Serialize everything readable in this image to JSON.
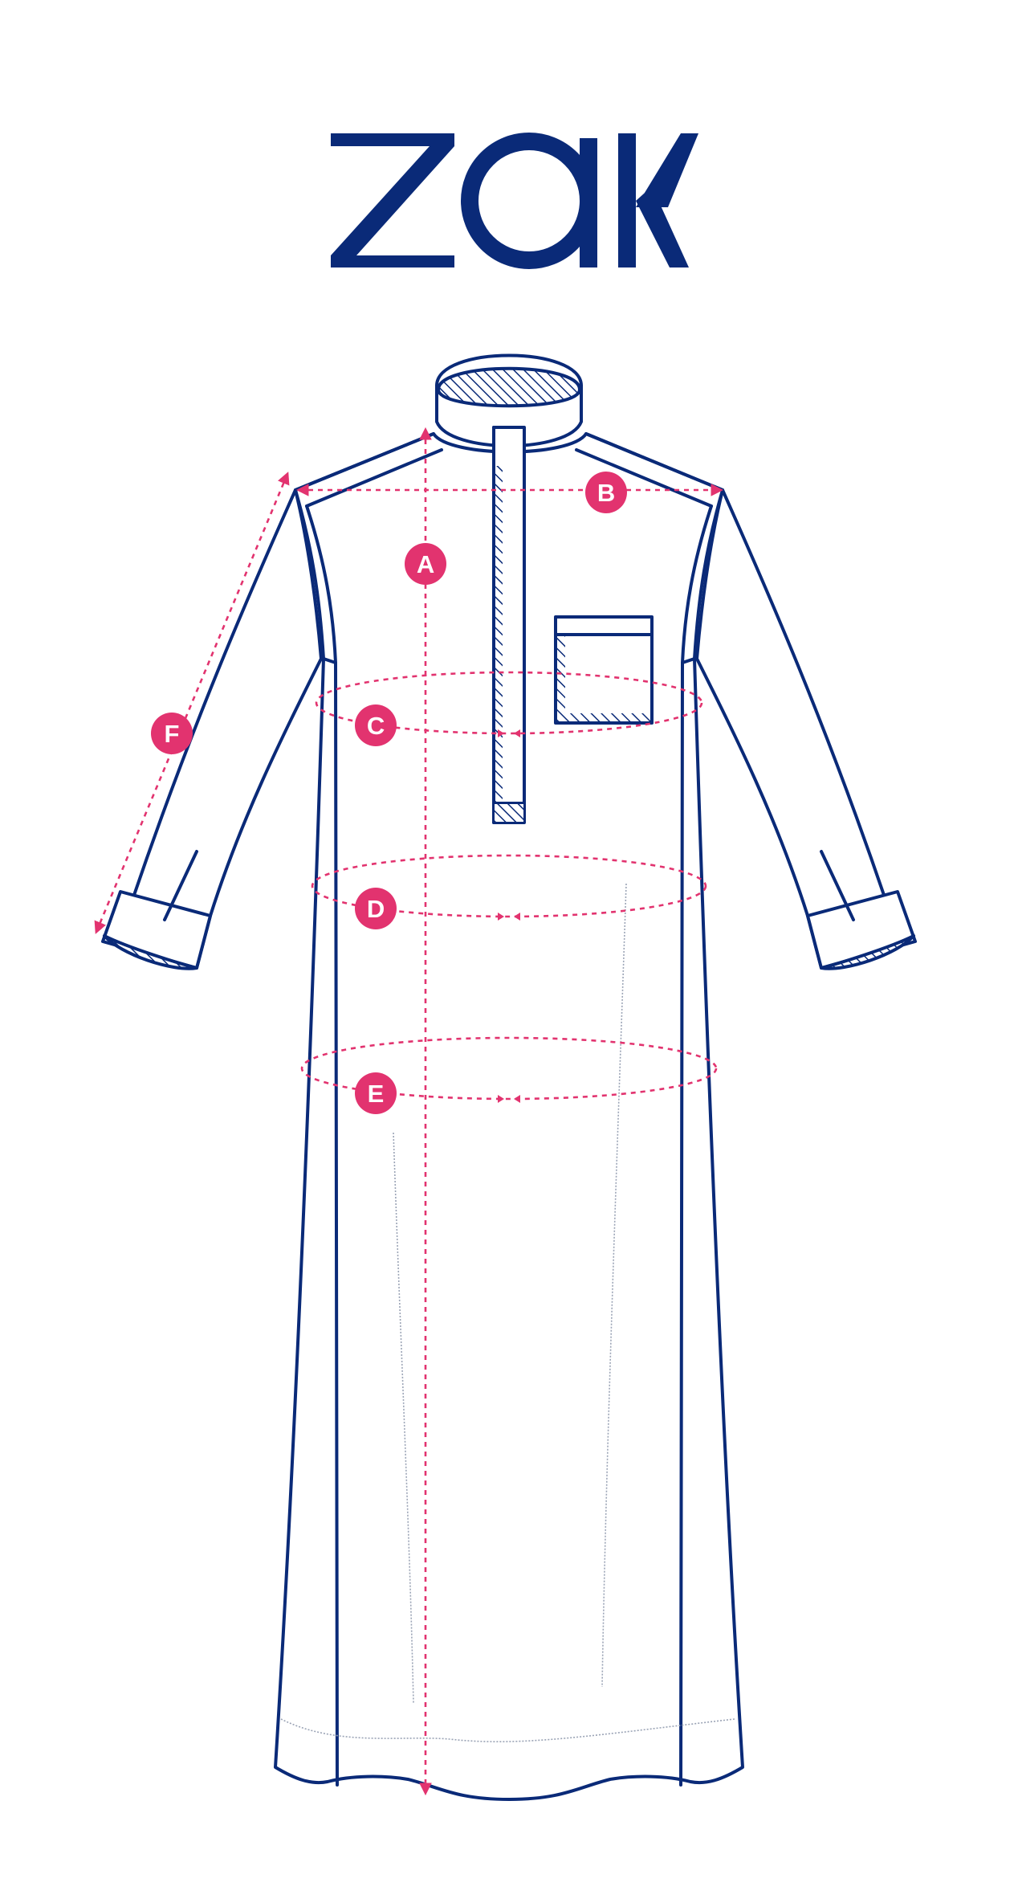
{
  "brand": {
    "logo_text": "zak"
  },
  "colors": {
    "background": "#ffffff",
    "outline": "#0a2a78",
    "measure": "#e2336f",
    "seam": "#9aa3b5"
  },
  "measurements": [
    {
      "id": "A",
      "label": "A"
    },
    {
      "id": "B",
      "label": "B"
    },
    {
      "id": "C",
      "label": "C"
    },
    {
      "id": "D",
      "label": "D"
    },
    {
      "id": "E",
      "label": "E"
    },
    {
      "id": "F",
      "label": "F"
    }
  ]
}
